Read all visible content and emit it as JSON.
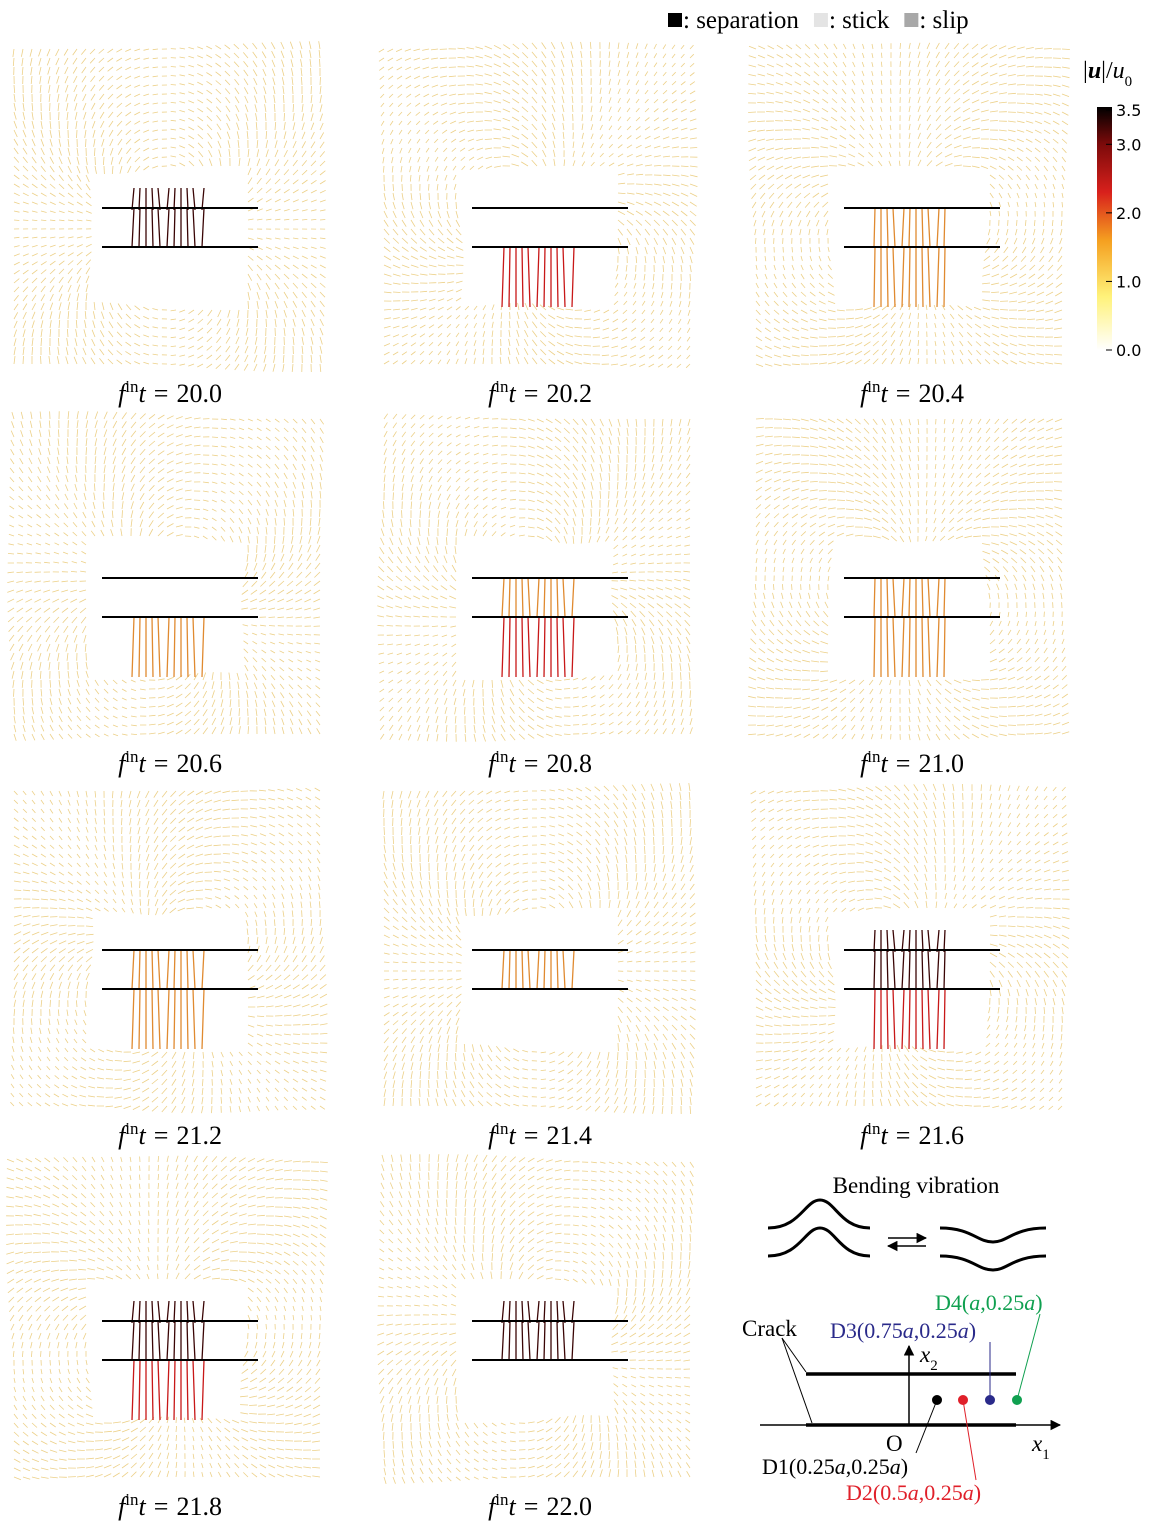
{
  "legend": [
    {
      "label": ": separation",
      "color": "#000000"
    },
    {
      "label": ": stick",
      "color": "#e4e4e4"
    },
    {
      "label": ": slip",
      "color": "#a8a8a8"
    }
  ],
  "colorbar": {
    "label": [
      "|",
      "u",
      "|/",
      "u",
      "0"
    ],
    "lim": [
      0,
      3.5
    ],
    "ticks": [
      {
        "value": 3.5,
        "label": "3.5"
      },
      {
        "value": 3.0,
        "label": "3.0"
      },
      {
        "value": 2.0,
        "label": "2.0"
      },
      {
        "value": 1.0,
        "label": "1.0"
      },
      {
        "value": 0.0,
        "label": "0.0"
      }
    ]
  },
  "caption": {
    "symbol": "f",
    "superscript": "in",
    "variable": "t",
    "equals": "="
  },
  "panels": [
    {
      "time": "20.0"
    },
    {
      "time": "20.2"
    },
    {
      "time": "20.4"
    },
    {
      "time": "20.6"
    },
    {
      "time": "20.8"
    },
    {
      "time": "21.0"
    },
    {
      "time": "21.2"
    },
    {
      "time": "21.4"
    },
    {
      "time": "21.6"
    },
    {
      "time": "21.8"
    },
    {
      "time": "22.0"
    }
  ],
  "diagram": {
    "title": "Bending vibration",
    "crack": "Crack",
    "origin": "O",
    "x1": [
      "x",
      "1"
    ],
    "x2": [
      "x",
      "2"
    ],
    "points": [
      {
        "parts": [
          "D1(",
          "0.25",
          "a",
          ",0.25",
          "a",
          ")"
        ],
        "color": "#000000"
      },
      {
        "parts": [
          "D2(",
          "0.5",
          "a",
          ",0.25",
          "a",
          ")"
        ],
        "color": "#e0202a"
      },
      {
        "parts": [
          "D3(",
          "0.75",
          "a",
          ",0.25",
          "a",
          ")"
        ],
        "color": "#2a2a8a"
      },
      {
        "parts": [
          "D4(",
          "",
          "a",
          ",0.25",
          "a",
          ")"
        ],
        "color": "#10a050"
      }
    ]
  }
}
